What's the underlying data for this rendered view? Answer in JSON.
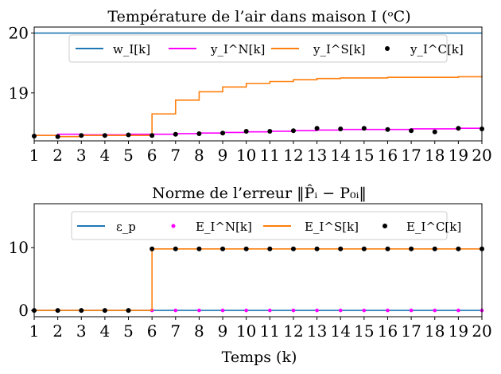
{
  "chart_data": [
    {
      "type": "line",
      "step": true,
      "title": "Température de l’air dans maison I (ᵒC)",
      "xlabel": "",
      "ylabel": "",
      "xlim": [
        1,
        20
      ],
      "ylim": [
        18.2,
        20.1
      ],
      "x": [
        1,
        2,
        3,
        4,
        5,
        6,
        7,
        8,
        9,
        10,
        11,
        12,
        13,
        14,
        15,
        16,
        17,
        18,
        19,
        20
      ],
      "x_ticks": [
        "1",
        "2",
        "3",
        "4",
        "5",
        "6",
        "7",
        "8",
        "9",
        "10",
        "11",
        "12",
        "13",
        "14",
        "15",
        "16",
        "17",
        "18",
        "19",
        "20"
      ],
      "y_ticks": [
        {
          "value": 19,
          "label": "19"
        },
        {
          "value": 20,
          "label": "20"
        }
      ],
      "legend": {
        "placement": "top-center",
        "columns": 4
      },
      "series": [
        {
          "name": "w_I[k]",
          "kind": "line",
          "color": "#1f77b4",
          "values": [
            20,
            20,
            20,
            20,
            20,
            20,
            20,
            20,
            20,
            20,
            20,
            20,
            20,
            20,
            20,
            20,
            20,
            20,
            20,
            20
          ]
        },
        {
          "name": "y_I^N[k]",
          "kind": "step",
          "color": "#ff00ff",
          "values": [
            18.29,
            18.31,
            18.3,
            18.3,
            18.31,
            18.31,
            18.32,
            18.33,
            18.34,
            18.35,
            18.36,
            18.37,
            18.38,
            18.39,
            18.39,
            18.39,
            18.4,
            18.4,
            18.41,
            18.42
          ]
        },
        {
          "name": "y_I^S[k]",
          "kind": "step",
          "color": "#ff7f0e",
          "values": [
            18.29,
            18.27,
            18.29,
            18.29,
            18.29,
            18.65,
            18.88,
            19.02,
            19.1,
            19.16,
            19.19,
            19.22,
            19.24,
            19.25,
            19.25,
            19.26,
            19.26,
            19.26,
            19.27,
            19.28
          ]
        },
        {
          "name": "y_I^C[k]",
          "kind": "scatter",
          "color": "#000000",
          "values": [
            18.28,
            18.27,
            18.29,
            18.29,
            18.3,
            18.29,
            18.31,
            18.32,
            18.33,
            18.36,
            18.36,
            18.37,
            18.41,
            18.4,
            18.41,
            18.39,
            18.37,
            18.35,
            18.41,
            18.4
          ]
        }
      ]
    },
    {
      "type": "line",
      "step": true,
      "title": "Norme de l’erreur ‖P̂ᵢ − P₀ᵢ‖",
      "xlabel": "Temps (k)",
      "ylabel": "",
      "xlim": [
        1,
        20
      ],
      "ylim": [
        -1,
        17
      ],
      "x": [
        1,
        2,
        3,
        4,
        5,
        6,
        7,
        8,
        9,
        10,
        11,
        12,
        13,
        14,
        15,
        16,
        17,
        18,
        19,
        20
      ],
      "x_ticks": [
        "1",
        "2",
        "3",
        "4",
        "5",
        "6",
        "7",
        "8",
        "9",
        "10",
        "11",
        "12",
        "13",
        "14",
        "15",
        "16",
        "17",
        "18",
        "19",
        "20"
      ],
      "y_ticks": [
        {
          "value": 0,
          "label": "0"
        },
        {
          "value": 10,
          "label": "10"
        }
      ],
      "legend": {
        "placement": "top-center",
        "columns": 4
      },
      "series": [
        {
          "name": "ε_p",
          "kind": "line",
          "color": "#1f77b4",
          "values": [
            0,
            0,
            0,
            0,
            0,
            0,
            0,
            0,
            0,
            0,
            0,
            0,
            0,
            0,
            0,
            0,
            0,
            0,
            0,
            0
          ]
        },
        {
          "name": "E_I^N[k]",
          "kind": "scatter",
          "color": "#ff00ff",
          "values": [
            0,
            0,
            0,
            0,
            0,
            0,
            0,
            0,
            0,
            0,
            0,
            0,
            0,
            0,
            0,
            0,
            0,
            0,
            0,
            0
          ]
        },
        {
          "name": "E_I^S[k]",
          "kind": "step",
          "color": "#ff7f0e",
          "values": [
            0,
            0,
            0,
            0,
            0,
            9.8,
            9.8,
            9.8,
            9.8,
            9.8,
            9.8,
            9.8,
            9.8,
            9.8,
            9.8,
            9.8,
            9.8,
            9.8,
            9.8,
            9.8
          ]
        },
        {
          "name": "E_I^C[k]",
          "kind": "scatter",
          "color": "#000000",
          "values": [
            0,
            0,
            0,
            0,
            0,
            9.8,
            9.8,
            9.8,
            9.8,
            9.8,
            9.8,
            9.8,
            9.8,
            9.8,
            9.8,
            9.8,
            9.8,
            9.8,
            9.8,
            9.8
          ]
        }
      ]
    }
  ]
}
